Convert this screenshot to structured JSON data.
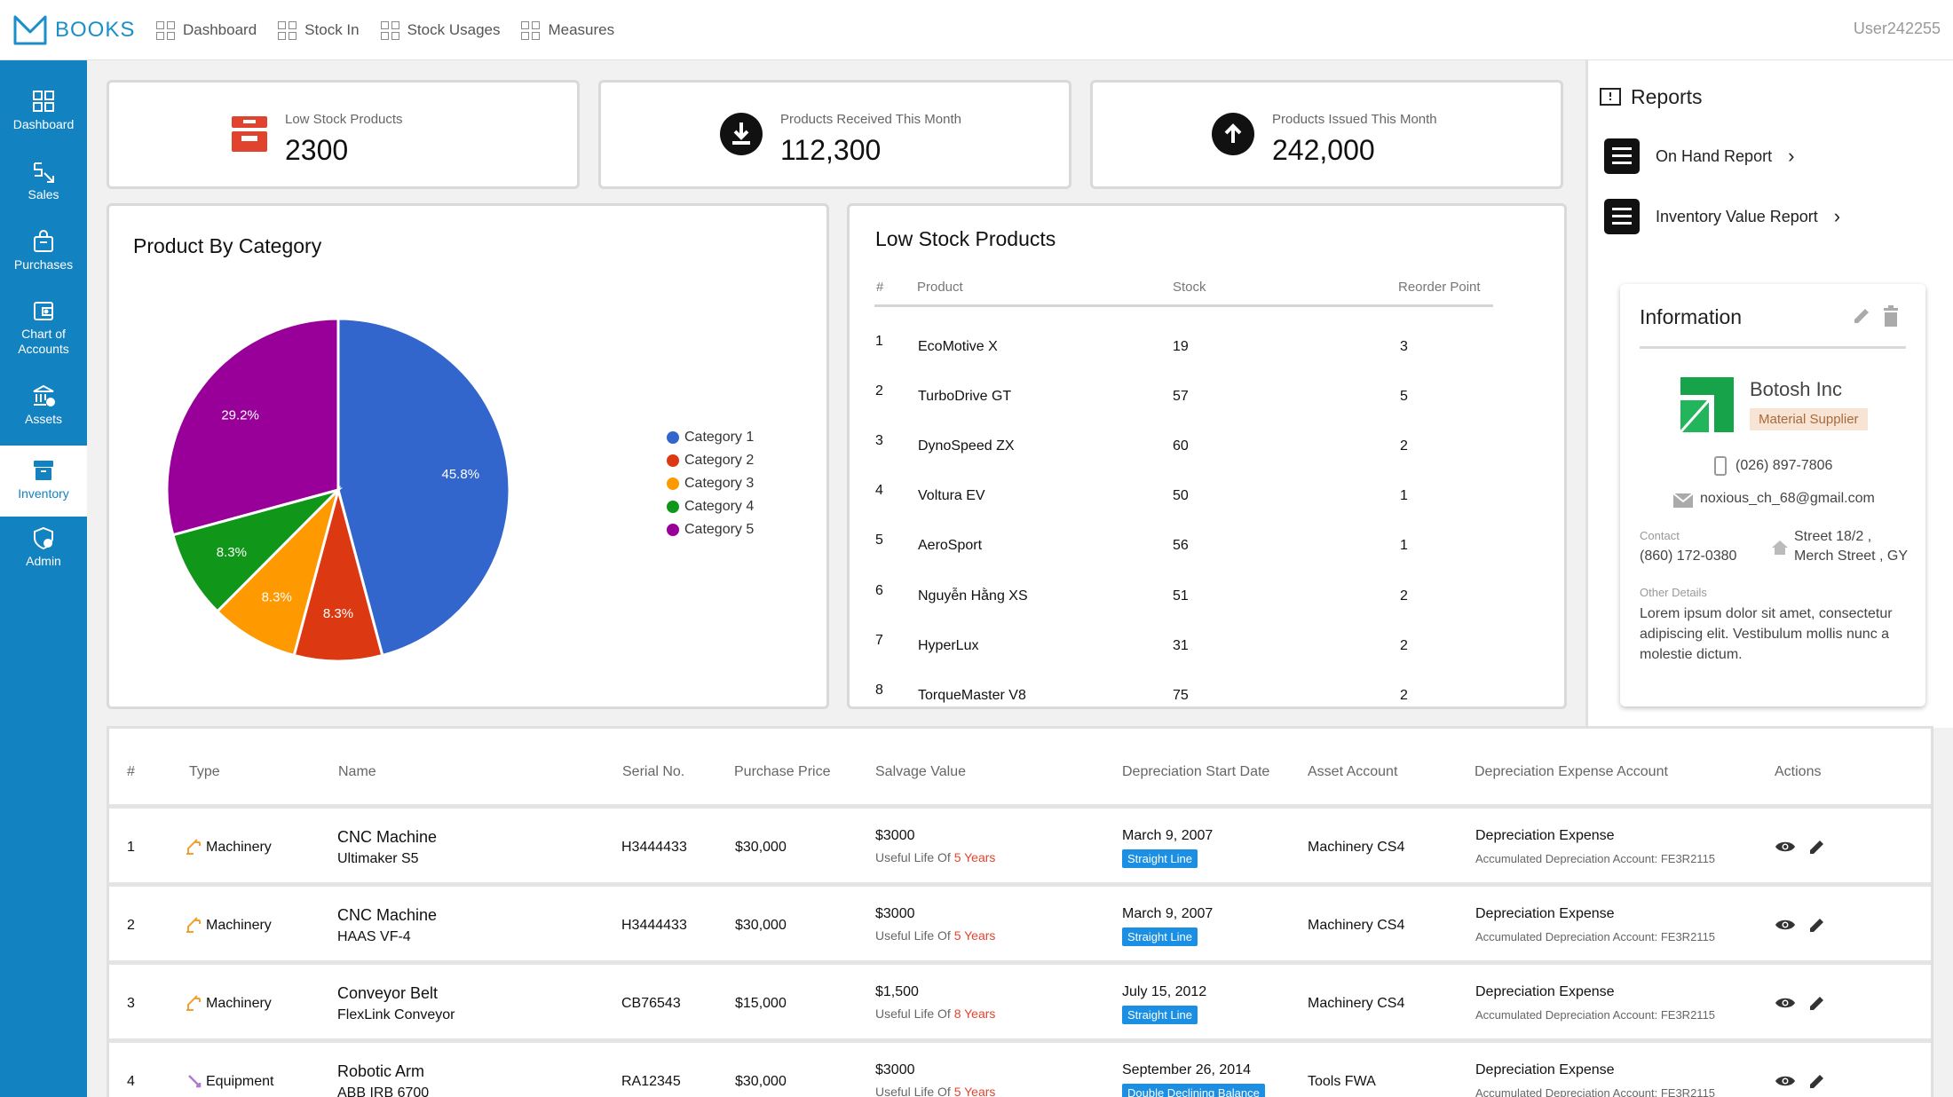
{
  "app": {
    "brand": "BOOKS",
    "user": "User242255"
  },
  "topnav": [
    {
      "label": "Dashboard"
    },
    {
      "label": "Stock In"
    },
    {
      "label": "Stock Usages"
    },
    {
      "label": "Measures"
    }
  ],
  "sidebar": [
    {
      "label": "Dashboard",
      "icon": "dashboard-icon"
    },
    {
      "label": "Sales",
      "icon": "sales-icon"
    },
    {
      "label": "Purchases",
      "icon": "bag-icon"
    },
    {
      "label": "Chart of Accounts",
      "icon": "wallet-icon"
    },
    {
      "label": "Assets",
      "icon": "bank-icon"
    },
    {
      "label": "Inventory",
      "icon": "archive-icon",
      "active": true
    },
    {
      "label": "Admin",
      "icon": "admin-icon"
    }
  ],
  "stats": [
    {
      "label": "Low Stock Products",
      "value": "2300",
      "icon": "low-stock-icon",
      "color": "#e0442e"
    },
    {
      "label": "Products Received This Month",
      "value": "112,300",
      "icon": "download-circle-icon",
      "color": "#111111"
    },
    {
      "label": "Products Issued This Month",
      "value": "242,000",
      "icon": "upload-circle-icon",
      "color": "#111111"
    }
  ],
  "category_chart": {
    "title": "Product By Category",
    "chart_data": {
      "type": "pie",
      "title": "Product By Category",
      "categories": [
        "Category 1",
        "Category 2",
        "Category 3",
        "Category 4",
        "Category 5"
      ],
      "values": [
        45.8,
        8.3,
        8.3,
        8.3,
        29.2
      ],
      "labels": [
        "45.8%",
        "8.3%",
        "8.3%",
        "8.3%",
        "29.2%"
      ],
      "colors": [
        "#3366cc",
        "#dc3912",
        "#ff9900",
        "#109618",
        "#990099"
      ],
      "legend": "right"
    }
  },
  "low_stock": {
    "title": "Low Stock Products",
    "headers": {
      "num": "#",
      "product": "Product",
      "stock": "Stock",
      "reorder": "Reorder Point"
    },
    "rows": [
      {
        "n": "1",
        "product": "EcoMotive X",
        "stock": "19",
        "reorder": "3"
      },
      {
        "n": "2",
        "product": "TurboDrive GT",
        "stock": "57",
        "reorder": "5"
      },
      {
        "n": "3",
        "product": "DynoSpeed ZX",
        "stock": "60",
        "reorder": "2"
      },
      {
        "n": "4",
        "product": "Voltura EV",
        "stock": "50",
        "reorder": "1"
      },
      {
        "n": "5",
        "product": "AeroSport",
        "stock": "56",
        "reorder": "1"
      },
      {
        "n": "6",
        "product": "Nguyễn Hằng XS",
        "stock": "51",
        "reorder": "2"
      },
      {
        "n": "7",
        "product": "HyperLux",
        "stock": "31",
        "reorder": "2"
      },
      {
        "n": "8",
        "product": "TorqueMaster V8",
        "stock": "75",
        "reorder": "2"
      }
    ]
  },
  "reports": {
    "title": "Reports",
    "items": [
      {
        "label": "On Hand Report"
      },
      {
        "label": "Inventory Value Report"
      }
    ]
  },
  "information": {
    "title": "Information",
    "company": "Botosh Inc",
    "badge": "Material Supplier",
    "phone": "(026) 897-7806",
    "email": "noxious_ch_68@gmail.com",
    "contact_label": "Contact",
    "contact_phone": "(860) 172-0380",
    "address_line1": "Street 18/2 ,",
    "address_line2": "Merch Street , GY",
    "other_label": "Other Details",
    "other_text": "Lorem ipsum dolor sit amet, consectetur adipiscing elit. Vestibulum mollis nunc a molestie dictum."
  },
  "assets": {
    "headers": [
      "#",
      "Type",
      "Name",
      "Serial No.",
      "Purchase Price",
      "Salvage Value",
      "Depreciation Start Date",
      "Asset Account",
      "Depreciation Expense Account",
      "Actions"
    ],
    "useful_prefix": "Useful Life Of ",
    "rows": [
      {
        "n": "1",
        "type": "Machinery",
        "type_icon": "machinery-icon",
        "name": "CNC Machine",
        "model": "Ultimaker S5",
        "serial": "H3444433",
        "price": "$30,000",
        "salvage": "$3000",
        "life": "5 Years",
        "date": "March 9, 2007",
        "method": "Straight Line",
        "account": "Machinery CS4",
        "expense": "Depreciation Expense",
        "accumulated": "Accumulated Depreciation Account: FE3R2115"
      },
      {
        "n": "2",
        "type": "Machinery",
        "type_icon": "machinery-icon",
        "name": "CNC Machine",
        "model": "HAAS VF-4",
        "serial": "H3444433",
        "price": "$30,000",
        "salvage": "$3000",
        "life": "5 Years",
        "date": "March 9, 2007",
        "method": "Straight Line",
        "account": "Machinery CS4",
        "expense": "Depreciation Expense",
        "accumulated": "Accumulated Depreciation Account: FE3R2115"
      },
      {
        "n": "3",
        "type": "Machinery",
        "type_icon": "machinery-icon",
        "name": "Conveyor Belt",
        "model": "FlexLink Conveyor",
        "serial": "CB76543",
        "price": "$15,000",
        "salvage": "$1,500",
        "life": "8 Years",
        "date": "July 15, 2012",
        "method": "Straight Line",
        "account": "Machinery CS4",
        "expense": "Depreciation Expense",
        "accumulated": "Accumulated Depreciation Account: FE3R2115"
      },
      {
        "n": "4",
        "type": "Equipment",
        "type_icon": "equipment-icon",
        "name": "Robotic Arm",
        "model": "ABB IRB 6700",
        "serial": "RA12345",
        "price": "$30,000",
        "salvage": "$3000",
        "life": "5 Years",
        "date": "September 26, 2014",
        "method": "Double Declining Balance",
        "account": "Tools FWA",
        "expense": "Depreciation Expense",
        "accumulated": "Accumulated Depreciation Account: FE3R2115"
      }
    ]
  }
}
